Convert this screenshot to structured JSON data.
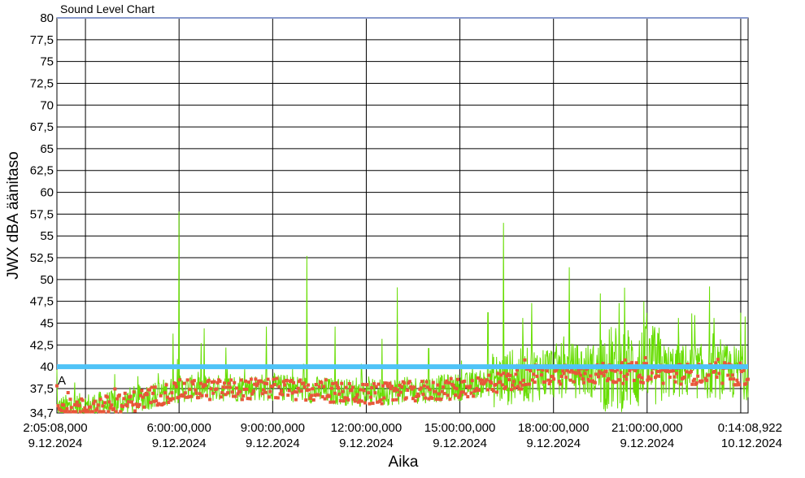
{
  "chart_data": {
    "type": "line",
    "title": "Sound Level Chart",
    "xlabel": "Aika",
    "ylabel": "JWX dBA äänitaso",
    "ylim": [
      34.7,
      80
    ],
    "y_ticks": [
      "34,7",
      "37,5",
      "40",
      "42,5",
      "45",
      "47,5",
      "50",
      "52,5",
      "55",
      "57,5",
      "60",
      "62,5",
      "65",
      "67,5",
      "70",
      "72,5",
      "75",
      "77,5",
      "80"
    ],
    "x_ticks": [
      {
        "time": "2:05:08,000",
        "date": "9.12.2024"
      },
      {
        "time": "6:00:00,000",
        "date": "9.12.2024"
      },
      {
        "time": "9:00:00,000",
        "date": "9.12.2024"
      },
      {
        "time": "12:00:00,000",
        "date": "9.12.2024"
      },
      {
        "time": "15:00:00,000",
        "date": "9.12.2024"
      },
      {
        "time": "18:00:00,000",
        "date": "9.12.2024"
      },
      {
        "time": "21:00:00,000",
        "date": "9.12.2024"
      },
      {
        "time": "0:14:08,922",
        "date": "10.12.2024"
      }
    ],
    "xlim_hours": [
      2.0856,
      24.2358
    ],
    "threshold": {
      "value": 40,
      "color": "#4fc3f7"
    },
    "marker_label": "A",
    "grid": true,
    "series": [
      {
        "color": "#66dd00",
        "spikes": [
          {
            "hour": 6.0,
            "value": 57.8
          },
          {
            "hour": 5.8,
            "value": 43.8
          },
          {
            "hour": 6.8,
            "value": 44.4
          },
          {
            "hour": 7.5,
            "value": 42.2
          },
          {
            "hour": 8.8,
            "value": 44.6
          },
          {
            "hour": 10.1,
            "value": 52.7
          },
          {
            "hour": 11.0,
            "value": 44.6
          },
          {
            "hour": 12.5,
            "value": 43.2
          },
          {
            "hour": 13.0,
            "value": 49.1
          },
          {
            "hour": 14.0,
            "value": 42.1
          },
          {
            "hour": 16.4,
            "value": 56.5
          },
          {
            "hour": 15.9,
            "value": 46.2
          },
          {
            "hour": 17.3,
            "value": 47.3
          },
          {
            "hour": 18.5,
            "value": 51.4
          },
          {
            "hour": 19.5,
            "value": 48.4
          },
          {
            "hour": 20.1,
            "value": 47.3
          },
          {
            "hour": 20.9,
            "value": 47.5
          },
          {
            "hour": 22.0,
            "value": 45.6
          },
          {
            "hour": 23.0,
            "value": 49.2
          },
          {
            "hour": 24.0,
            "value": 46.2
          }
        ]
      },
      {
        "color": "#e8563a",
        "marker": "square",
        "trend": [
          {
            "hour": 2.09,
            "value": 35.0
          },
          {
            "hour": 4.0,
            "value": 35.6
          },
          {
            "hour": 6.0,
            "value": 37.3
          },
          {
            "hour": 9.0,
            "value": 37.5
          },
          {
            "hour": 12.0,
            "value": 36.8
          },
          {
            "hour": 15.0,
            "value": 37.5
          },
          {
            "hour": 18.0,
            "value": 39.2
          },
          {
            "hour": 21.0,
            "value": 39.3
          },
          {
            "hour": 24.2,
            "value": 39.0
          }
        ]
      }
    ]
  }
}
